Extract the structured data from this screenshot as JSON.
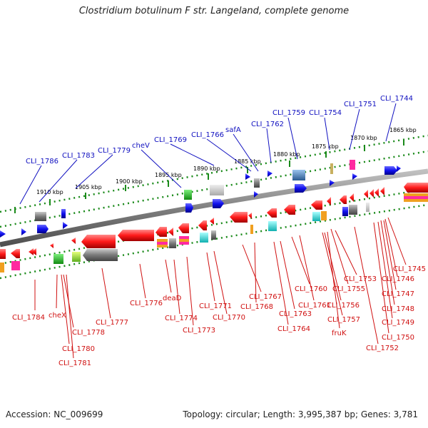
{
  "title": "Clostridium botulinum F str. Langeland, complete genome",
  "footer": {
    "accession": "Accession: NC_009699",
    "summary": "Topology: circular; Length: 3,995,387 bp; Genes: 3,781"
  },
  "colors": {
    "forward_label": "#1010c0",
    "reverse_label": "#d01010",
    "backbone": "#808080",
    "tick": "#1a8a1a"
  },
  "kbp_ticks": [
    "1910 kbp",
    "1905 kbp",
    "1900 kbp",
    "1895 kbp",
    "1890 kbp",
    "1885 kbp",
    "1880 kbp",
    "1875 kbp",
    "1870 kbp",
    "1865 kbp"
  ],
  "forward_labels": [
    "CLI_1786",
    "CLI_1783",
    "CLI_1779",
    "cheV",
    "CLI_1769",
    "CLI_1766",
    "safA",
    "CLI_1762",
    "CLI_1759",
    "CLI_1754",
    "CLI_1751",
    "CLI_1744"
  ],
  "reverse_labels": [
    "CLI_1784",
    "cheX",
    "CLI_1778",
    "CLI_1780",
    "CLI_1781",
    "CLI_1777",
    "CLI_1776",
    "deaD",
    "CLI_1774",
    "CLI_1773",
    "CLI_1771",
    "CLI_1770",
    "CLI_1767",
    "CLI_1768",
    "CLI_1763",
    "CLI_1764",
    "CLI_1760",
    "CLI_1761",
    "CLI_1755",
    "CLI_1753",
    "CLI_1756",
    "CLI_1757",
    "fruK",
    "CLI_1752",
    "CLI_1750",
    "CLI_1749",
    "CLI_1748",
    "CLI_1747",
    "CLI_1746",
    "CLI_1745"
  ]
}
